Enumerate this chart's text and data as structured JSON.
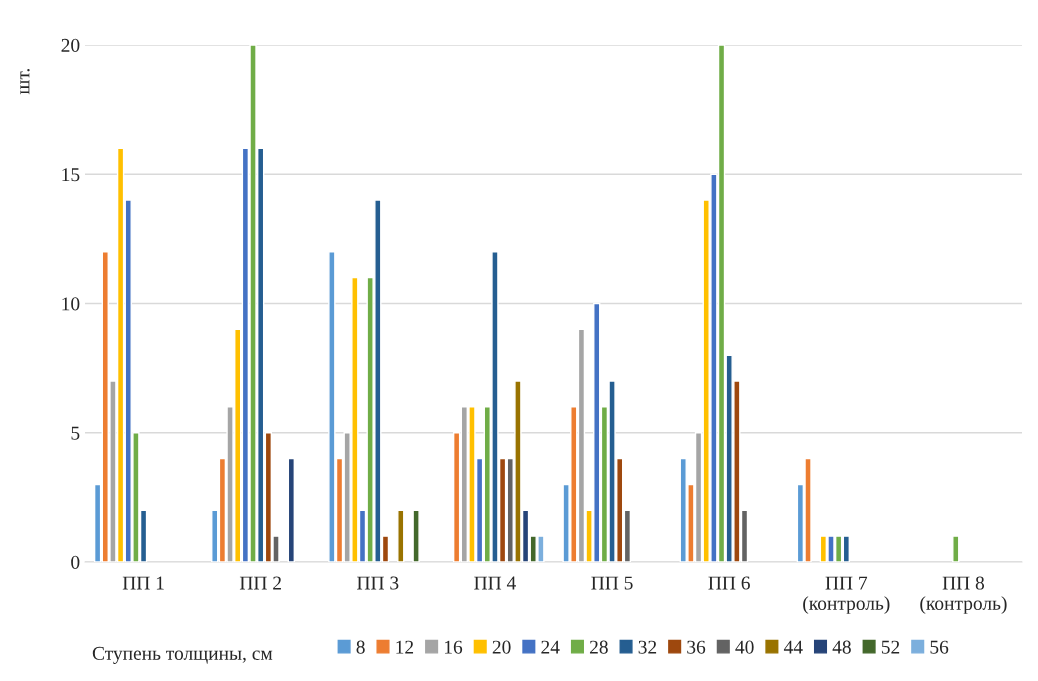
{
  "chart_data": {
    "type": "bar",
    "ylabel": "шт.",
    "legend_title": "Ступень толщины, см",
    "categories": [
      "ПП 1",
      "ПП 2",
      "ПП 3",
      "ПП 4",
      "ПП 5",
      "ПП 6",
      "ПП 7\n(контроль)",
      "ПП 8\n(контроль)"
    ],
    "series": [
      {
        "name": "8",
        "color": "#5b9bd5",
        "values": [
          3,
          2,
          12,
          null,
          3,
          4,
          3,
          null
        ]
      },
      {
        "name": "12",
        "color": "#ed7d31",
        "values": [
          12,
          4,
          4,
          5,
          6,
          3,
          4,
          null
        ]
      },
      {
        "name": "16",
        "color": "#a5a5a5",
        "values": [
          7,
          6,
          5,
          6,
          9,
          5,
          null,
          null
        ]
      },
      {
        "name": "20",
        "color": "#ffc000",
        "values": [
          16,
          9,
          11,
          6,
          2,
          14,
          1,
          null
        ]
      },
      {
        "name": "24",
        "color": "#4472c4",
        "values": [
          14,
          16,
          2,
          4,
          10,
          15,
          1,
          null
        ]
      },
      {
        "name": "28",
        "color": "#70ad47",
        "values": [
          5,
          20,
          11,
          6,
          6,
          20,
          1,
          1
        ]
      },
      {
        "name": "32",
        "color": "#255e91",
        "values": [
          2,
          16,
          14,
          12,
          7,
          8,
          1,
          null
        ]
      },
      {
        "name": "36",
        "color": "#9e480e",
        "values": [
          null,
          5,
          1,
          4,
          4,
          7,
          null,
          null
        ]
      },
      {
        "name": "40",
        "color": "#636363",
        "values": [
          null,
          1,
          null,
          4,
          2,
          2,
          null,
          null
        ]
      },
      {
        "name": "44",
        "color": "#997300",
        "values": [
          null,
          null,
          2,
          7,
          null,
          null,
          null,
          null
        ]
      },
      {
        "name": "48",
        "color": "#264478",
        "values": [
          null,
          4,
          null,
          2,
          null,
          null,
          null,
          null
        ]
      },
      {
        "name": "52",
        "color": "#43682b",
        "values": [
          null,
          null,
          2,
          1,
          null,
          null,
          null,
          null
        ]
      },
      {
        "name": "56",
        "color": "#7cafdd",
        "values": [
          null,
          null,
          null,
          1,
          null,
          null,
          null,
          null
        ]
      }
    ],
    "ylim": [
      0,
      20
    ],
    "yticks": [
      0,
      5,
      10,
      15,
      20
    ],
    "grid": "y",
    "legend": "bottom"
  }
}
